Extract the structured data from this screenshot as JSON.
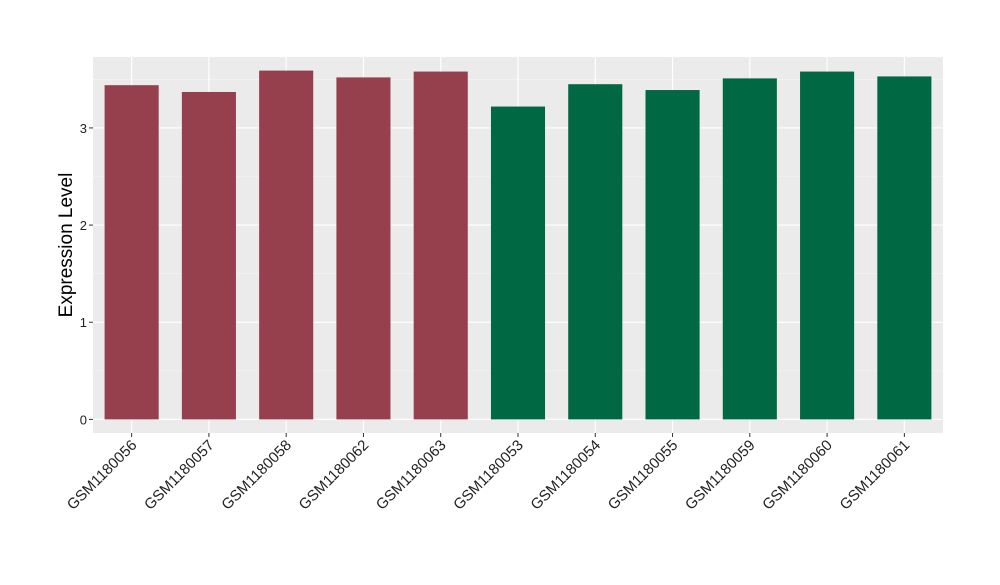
{
  "chart_data": {
    "type": "bar",
    "title": "",
    "xlabel": "",
    "ylabel": "Expression Level",
    "ylim": [
      -0.14,
      3.73
    ],
    "yticks": [
      0,
      1,
      2,
      3
    ],
    "grid": true,
    "legend": "none",
    "categories": [
      "GSM1180056",
      "GSM1180057",
      "GSM1180058",
      "GSM1180062",
      "GSM1180063",
      "GSM1180053",
      "GSM1180054",
      "GSM1180055",
      "GSM1180059",
      "GSM1180060",
      "GSM1180061"
    ],
    "values": [
      3.44,
      3.37,
      3.59,
      3.52,
      3.58,
      3.22,
      3.45,
      3.39,
      3.51,
      3.58,
      3.53
    ],
    "bar_colors": [
      "#96404D",
      "#96404D",
      "#96404D",
      "#96404D",
      "#96404D",
      "#006843",
      "#006843",
      "#006843",
      "#006843",
      "#006843",
      "#006843"
    ],
    "colors": {
      "panel_background": "#EBEBEB",
      "grid_major": "#FFFFFF",
      "grid_minor": "#F5F5F5",
      "text": "#000000"
    }
  }
}
